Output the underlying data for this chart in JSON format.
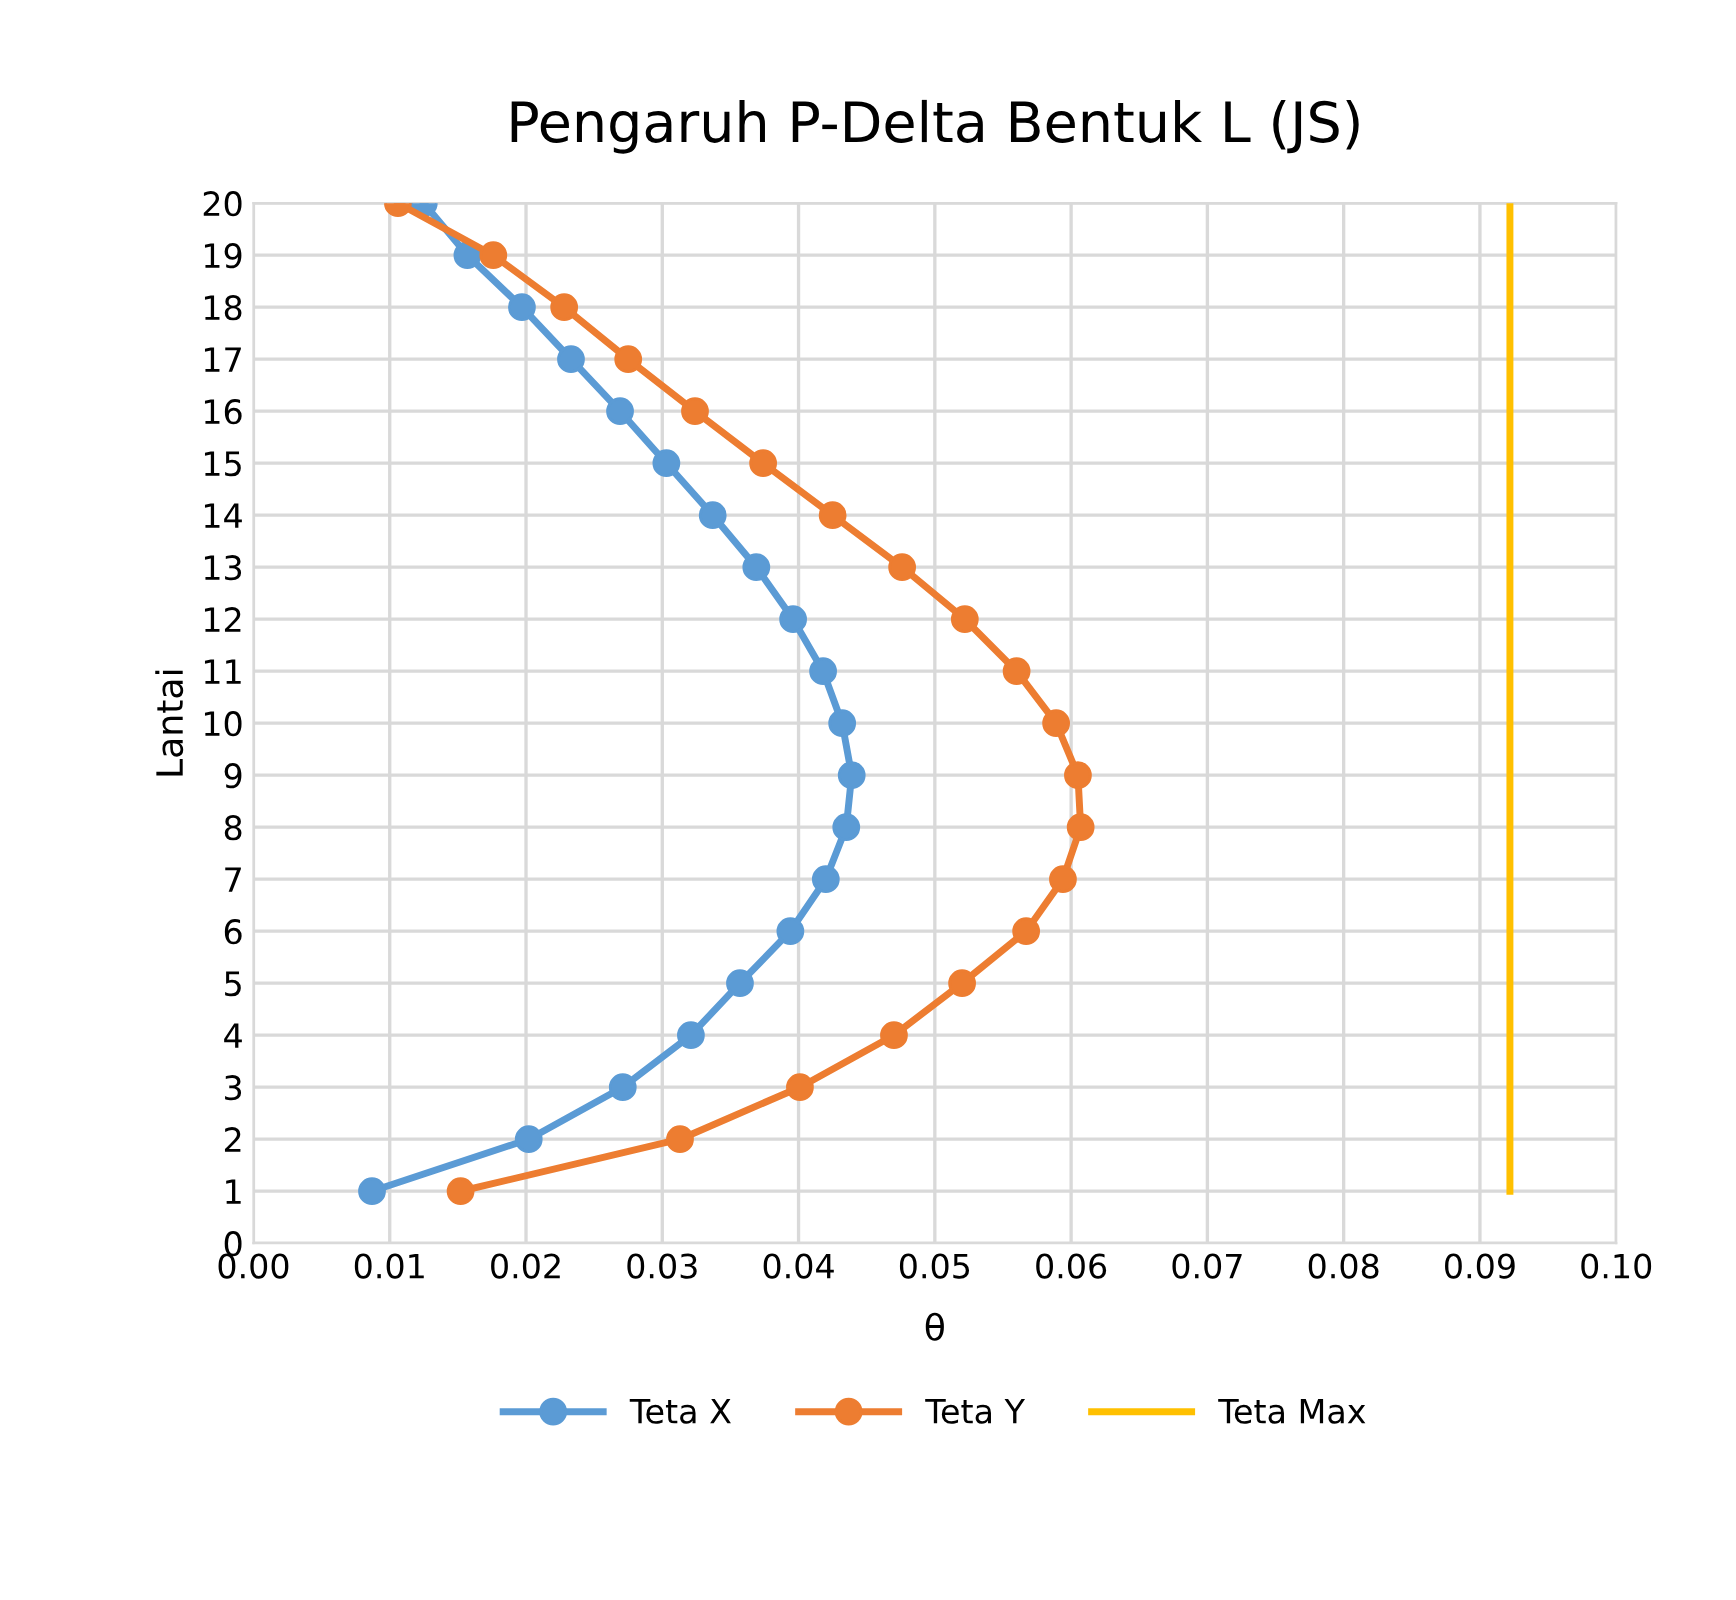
{
  "chart_data": {
    "type": "line",
    "title": "Pengaruh P-Delta Bentuk L (JS)",
    "xlabel": "θ",
    "ylabel": "Lantai",
    "xlim": [
      0,
      0.1
    ],
    "xticks": [
      {
        "value": 0,
        "label": "0.00"
      },
      {
        "value": 0.01,
        "label": "0.01"
      },
      {
        "value": 0.02,
        "label": "0.02"
      },
      {
        "value": 0.03,
        "label": "0.03"
      },
      {
        "value": 0.04,
        "label": "0.04"
      },
      {
        "value": 0.05,
        "label": "0.05"
      },
      {
        "value": 0.06,
        "label": "0.06"
      },
      {
        "value": 0.07,
        "label": "0.07"
      },
      {
        "value": 0.08,
        "label": "0.08"
      },
      {
        "value": 0.09,
        "label": "0.09"
      },
      {
        "value": 0.1,
        "label": "0.10"
      }
    ],
    "ylim": [
      0,
      20
    ],
    "yticks": [
      0,
      1,
      2,
      3,
      4,
      5,
      6,
      7,
      8,
      9,
      10,
      11,
      12,
      13,
      14,
      15,
      16,
      17,
      18,
      19,
      20
    ],
    "grid": true,
    "legend": "bottom",
    "line_style": "solid",
    "series": [
      {
        "name": "Teta X",
        "color": "#5b9bd5",
        "marker": "circle",
        "x": [
          0.0125,
          0.0157,
          0.0197,
          0.0233,
          0.0269,
          0.0303,
          0.0337,
          0.0369,
          0.0396,
          0.0418,
          0.0432,
          0.0439,
          0.0435,
          0.042,
          0.0394,
          0.0357,
          0.0321,
          0.0271,
          0.0202,
          0.0087
        ],
        "values": [
          20,
          19,
          18,
          17,
          16,
          15,
          14,
          13,
          12,
          11,
          10,
          9,
          8,
          7,
          6,
          5,
          4,
          3,
          2,
          1
        ]
      },
      {
        "name": "Teta Y",
        "color": "#ed7d31",
        "marker": "circle",
        "x": [
          0.0106,
          0.0176,
          0.0228,
          0.0275,
          0.0324,
          0.0374,
          0.0425,
          0.0476,
          0.0522,
          0.056,
          0.0589,
          0.0605,
          0.0607,
          0.0594,
          0.0567,
          0.052,
          0.047,
          0.0401,
          0.0313,
          0.0152
        ],
        "values": [
          20,
          19,
          18,
          17,
          16,
          15,
          14,
          13,
          12,
          11,
          10,
          9,
          8,
          7,
          6,
          5,
          4,
          3,
          2,
          1
        ]
      },
      {
        "name": "Teta Max",
        "color": "#ffc000",
        "marker": "none",
        "x": [
          0.0922,
          0.0922
        ],
        "values": [
          1,
          20
        ]
      }
    ]
  }
}
